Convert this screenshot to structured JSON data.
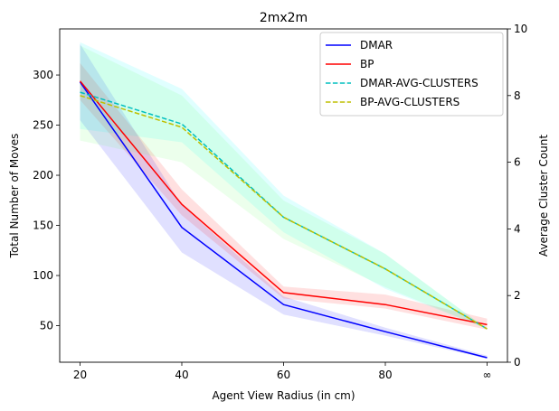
{
  "chart_data": {
    "type": "line",
    "title": "2mx2m",
    "xlabel": "Agent View Radius (in cm)",
    "ylabel": "Total Number of Moves",
    "y2label": "Average Cluster Count",
    "x_ticks": [
      "20",
      "40",
      "60",
      "80",
      "∞"
    ],
    "x_positions": [
      20,
      40,
      60,
      80,
      100
    ],
    "xlim": [
      16,
      104
    ],
    "ylim": [
      13.5,
      346
    ],
    "y_ticks": [
      50,
      100,
      150,
      200,
      250,
      300
    ],
    "y2lim": [
      0,
      10
    ],
    "y2_ticks": [
      0,
      2,
      4,
      6,
      8,
      10
    ],
    "legend_position": "top-right",
    "series": [
      {
        "name": "DMAR",
        "axis": "left",
        "style": "solid",
        "color": "#0000ff",
        "x": [
          20,
          40,
          60,
          80,
          100
        ],
        "values": [
          293,
          148,
          71,
          44,
          18
        ],
        "lower": [
          255,
          123,
          61,
          40,
          17
        ],
        "upper": [
          331,
          170,
          79,
          48,
          20
        ],
        "band_color": "#0000ff"
      },
      {
        "name": "BP",
        "axis": "left",
        "style": "solid",
        "color": "#ff0000",
        "x": [
          20,
          40,
          60,
          80,
          100
        ],
        "values": [
          294,
          171,
          83,
          71,
          51
        ],
        "lower": [
          275,
          160,
          77,
          67,
          46
        ],
        "upper": [
          312,
          186,
          89,
          81,
          57
        ],
        "band_color": "#ff0000"
      },
      {
        "name": "DMAR-AVG-CLUSTERS",
        "axis": "right",
        "style": "dashed",
        "color": "#00bfbf",
        "x": [
          20,
          40,
          60,
          80,
          100
        ],
        "values": [
          8.1,
          7.15,
          4.35,
          2.8,
          1.0
        ],
        "lower": [
          7.0,
          6.6,
          3.9,
          2.2,
          1.0
        ],
        "upper": [
          9.6,
          8.2,
          5.0,
          3.25,
          1.0
        ],
        "band_color": "#00ffff"
      },
      {
        "name": "BP-AVG-CLUSTERS",
        "axis": "right",
        "style": "dashed",
        "color": "#bfbf00",
        "x": [
          20,
          40,
          60,
          80,
          100
        ],
        "values": [
          8.0,
          7.05,
          4.35,
          2.8,
          1.0
        ],
        "lower": [
          6.65,
          6.0,
          3.7,
          2.25,
          1.0
        ],
        "upper": [
          9.5,
          8.0,
          4.85,
          3.25,
          1.0
        ],
        "band_color": "#66ff66"
      }
    ]
  }
}
